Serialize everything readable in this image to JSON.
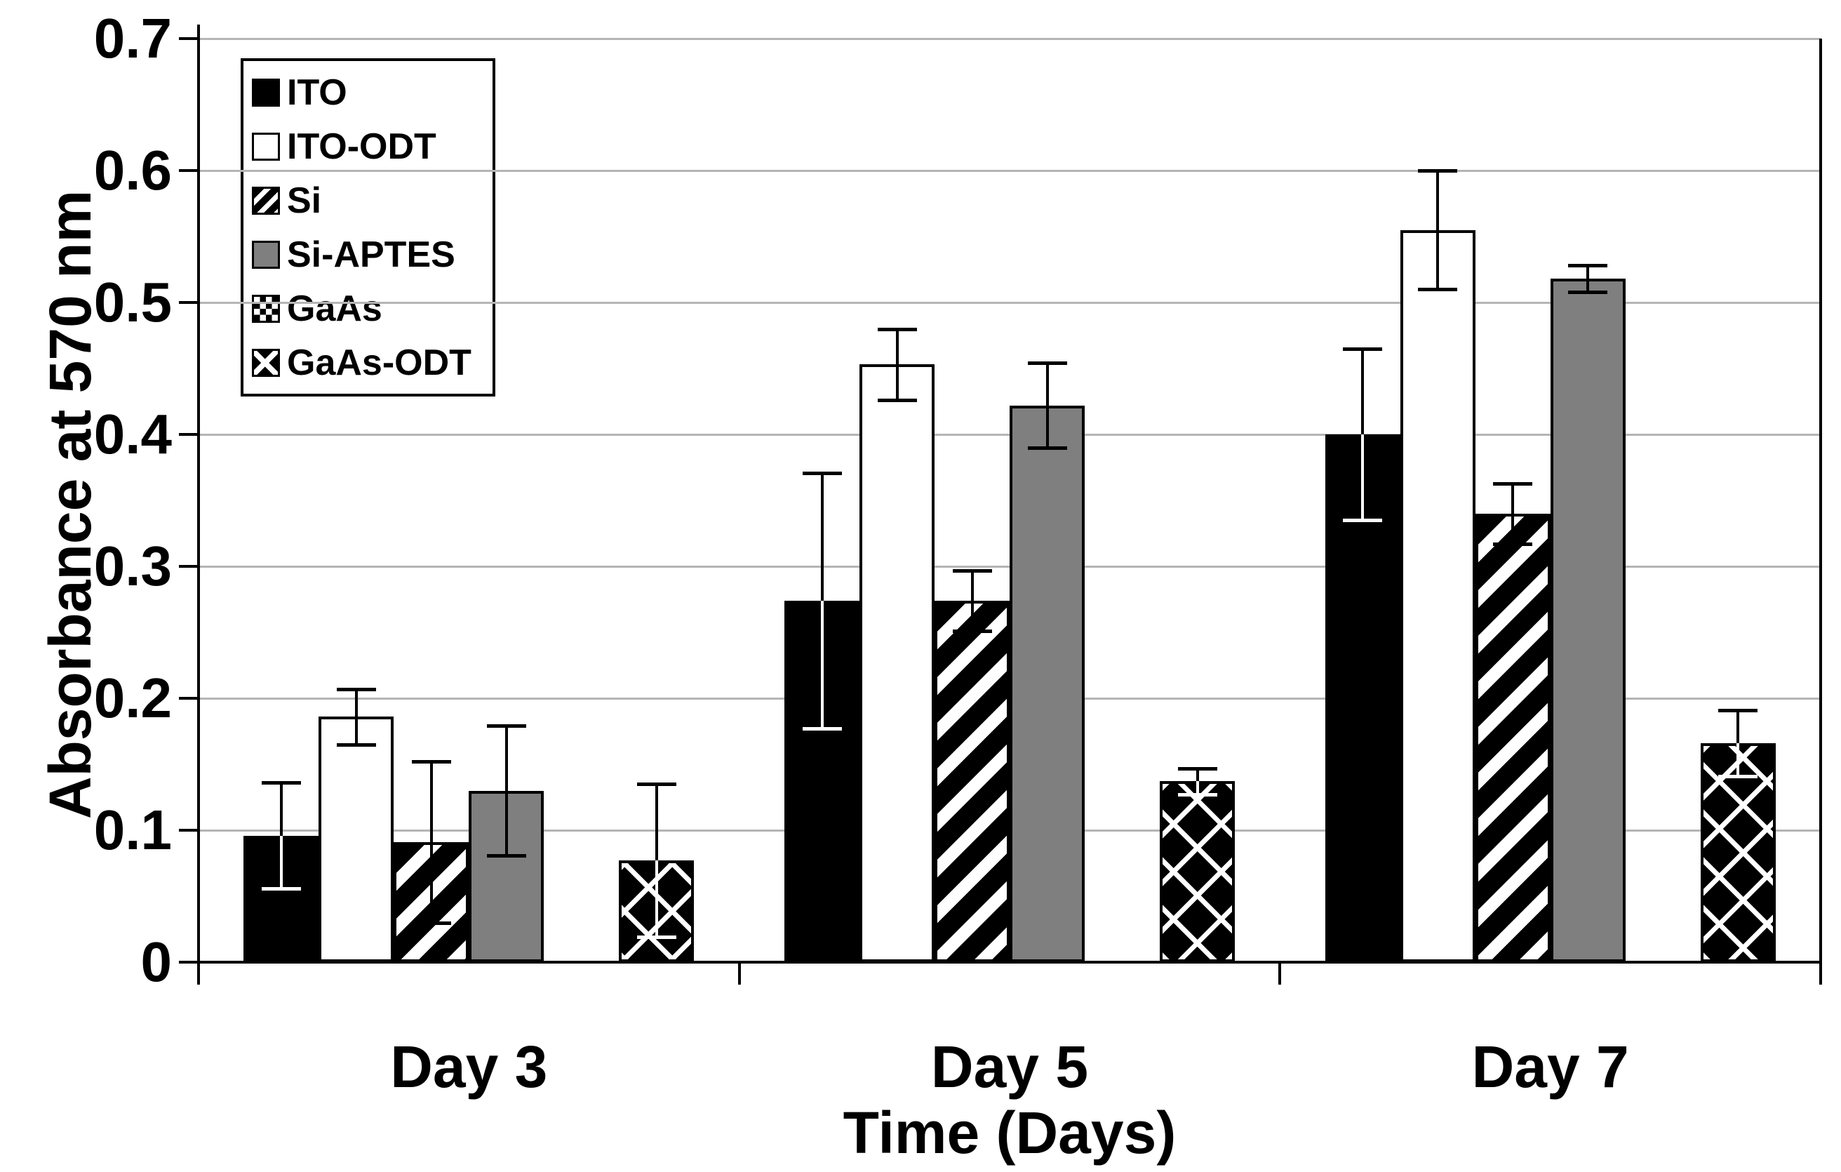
{
  "chart_data": {
    "type": "bar",
    "title": "",
    "xlabel": "Time (Days)",
    "ylabel": "Absorbance at 570 nm",
    "ylim": [
      0,
      0.7
    ],
    "yticks": [
      "0",
      "0.1",
      "0.2",
      "0.3",
      "0.4",
      "0.5",
      "0.6",
      "0.7"
    ],
    "grid": true,
    "legend_position": "top-left-inside",
    "categories": [
      "Day 3",
      "Day 5",
      "Day 7"
    ],
    "series": [
      {
        "name": "ITO",
        "pattern": "solid-black",
        "values": [
          0.096,
          0.274,
          0.4
        ],
        "errors": [
          0.04,
          0.097,
          0.065
        ]
      },
      {
        "name": "ITO-ODT",
        "pattern": "white",
        "values": [
          0.186,
          0.453,
          0.555
        ],
        "errors": [
          0.021,
          0.027,
          0.045
        ]
      },
      {
        "name": "Si",
        "pattern": "diagonal-stripes",
        "values": [
          0.091,
          0.274,
          0.34
        ],
        "errors": [
          0.061,
          0.023,
          0.023
        ]
      },
      {
        "name": "Si-APTES",
        "pattern": "solid-gray",
        "values": [
          0.13,
          0.422,
          0.518
        ],
        "errors": [
          0.049,
          0.032,
          0.01
        ]
      },
      {
        "name": "GaAs",
        "pattern": "checkerboard",
        "values": [
          0,
          0,
          0
        ],
        "errors": [
          0,
          0,
          0
        ]
      },
      {
        "name": "GaAs-ODT",
        "pattern": "diamond-crosshatch",
        "values": [
          0.077,
          0.137,
          0.166
        ],
        "errors": [
          0.058,
          0.01,
          0.025
        ]
      }
    ],
    "colors": {
      "gray_fill": "#7f7f7f",
      "gridline": "#b5b5b5",
      "axis": "#000000",
      "background": "#ffffff"
    }
  }
}
